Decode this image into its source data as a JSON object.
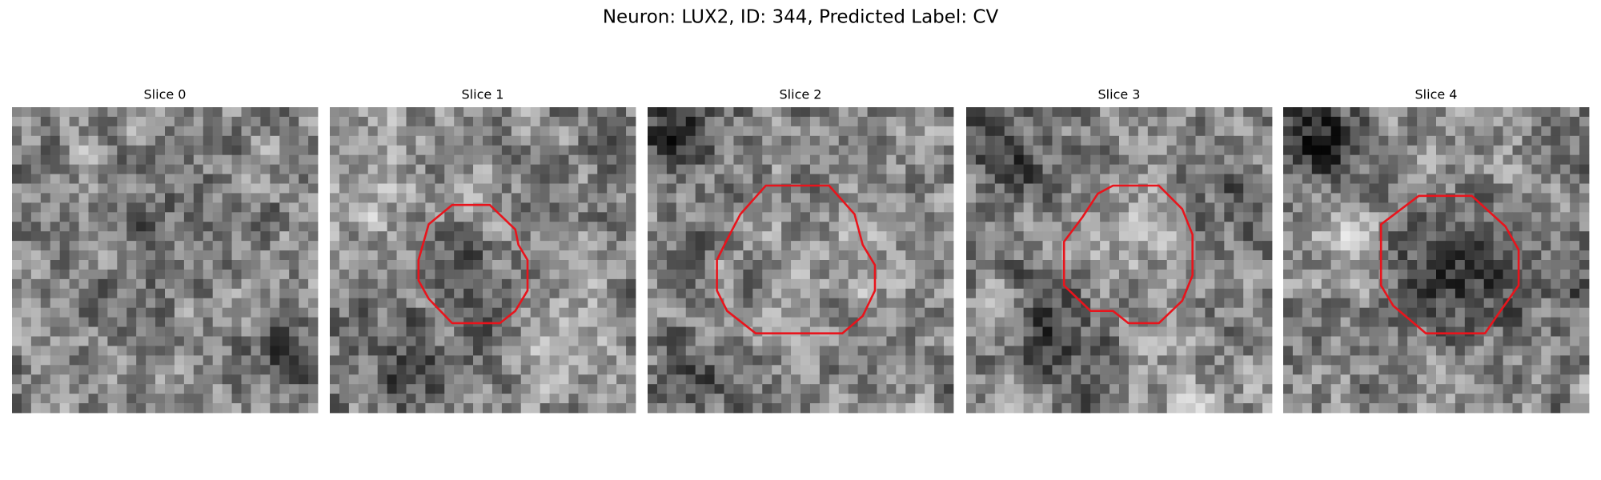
{
  "title": "Neuron: LUX2, ID: 344, Predicted Label: CV",
  "panels": [
    {
      "title": "Slice 0"
    },
    {
      "title": "Slice 1"
    },
    {
      "title": "Slice 2"
    },
    {
      "title": "Slice 3"
    },
    {
      "title": "Slice 4"
    }
  ]
}
